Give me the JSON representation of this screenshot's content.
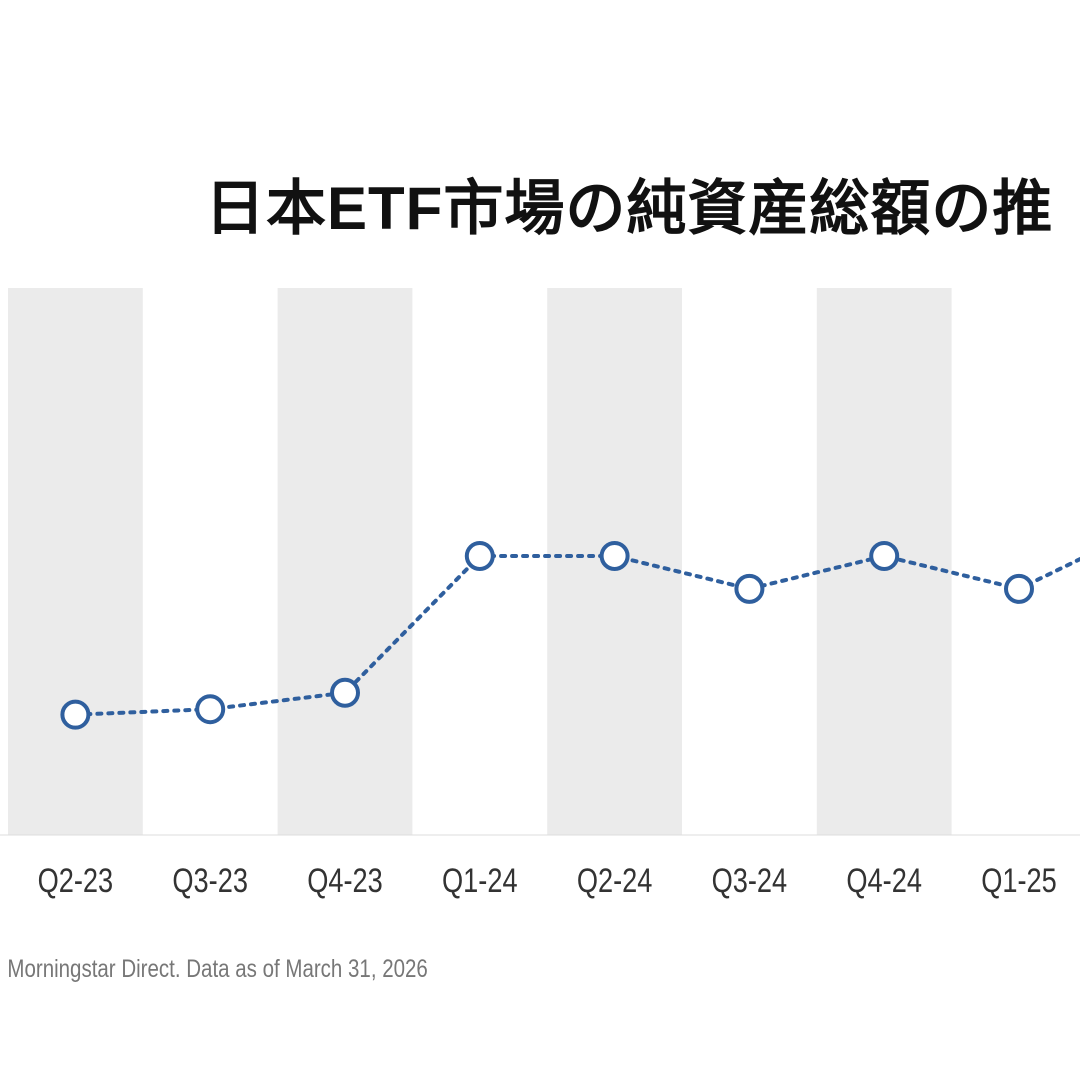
{
  "chart_data": {
    "type": "line",
    "title": "日本ETF市場の純資産総額の推",
    "source": ": Morningstar Direct. Data as of March 31, 2026",
    "categories": [
      "Q2-23",
      "Q3-23",
      "Q4-23",
      "Q1-24",
      "Q2-24",
      "Q3-24",
      "Q4-24",
      "Q1-25"
    ],
    "values_relative_index": [
      22,
      23,
      26,
      51,
      51,
      45,
      51,
      45
    ],
    "y_axis": "not shown (no tick labels visible)",
    "xlabel": "",
    "ylabel": "",
    "grid": false,
    "alternating_shaded_columns": true,
    "colors": {
      "line": "#2f5f9e",
      "marker_fill": "#ffffff",
      "shade": "#ebebeb",
      "text": "#333333"
    },
    "line_style": "dotted",
    "marker": "hollow-circle"
  }
}
